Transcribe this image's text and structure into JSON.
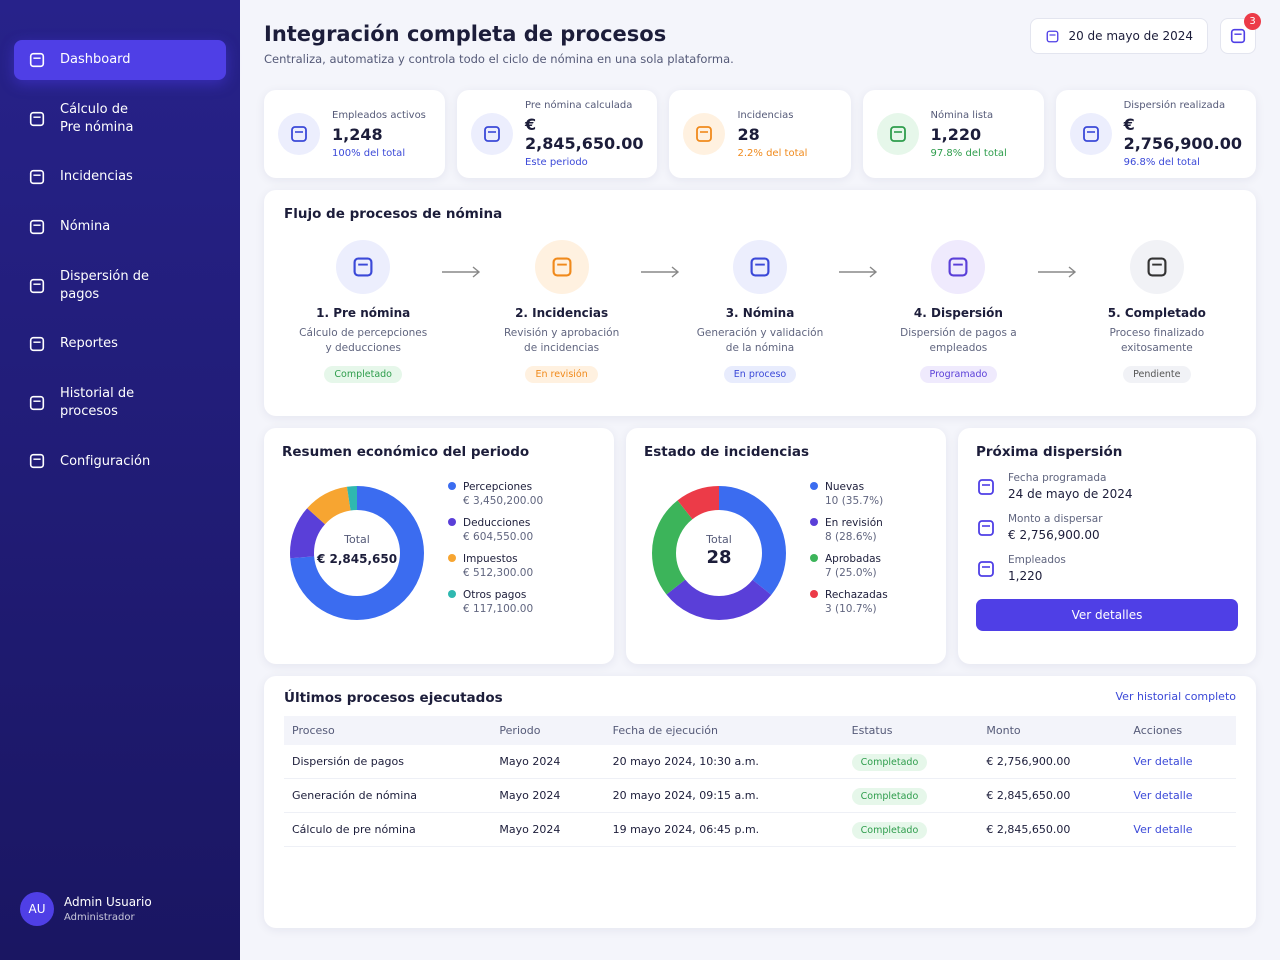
{
  "sidebar": {
    "nav": [
      "Dashboard",
      "Cálculo de Pre nómina",
      "Incidencias",
      "Nómina",
      "Dispersión de pagos",
      "Reportes",
      "Historial de procesos",
      "Configuración"
    ],
    "user": {
      "initials": "AU",
      "name": "Admin Usuario",
      "role": "Administrador"
    }
  },
  "header": {
    "title": "Integración completa de procesos",
    "subtitle": "Centraliza, automatiza y controla todo el ciclo de nómina en una sola plataforma.",
    "date": "20 de mayo de 2024",
    "notifications": 3
  },
  "kpis": [
    {
      "label": "Empleados activos",
      "value": "1,248",
      "note": "100% del total"
    },
    {
      "label": "Pre nómina calculada",
      "value": "€ 2,845,650.00",
      "note": "Este periodo"
    },
    {
      "label": "Incidencias",
      "value": "28",
      "note": "2.2% del total"
    },
    {
      "label": "Nómina lista",
      "value": "1,220",
      "note": "97.8% del total"
    },
    {
      "label": "Dispersión realizada",
      "value": "€ 2,756,900.00",
      "note": "96.8% del total"
    }
  ],
  "flow": {
    "title": "Flujo de procesos de nómina",
    "steps": [
      {
        "title": "1. Pre nómina",
        "desc": "Cálculo de percepciones y deducciones",
        "status": "Completado"
      },
      {
        "title": "2. Incidencias",
        "desc": "Revisión y aprobación de incidencias",
        "status": "En revisión"
      },
      {
        "title": "3. Nómina",
        "desc": "Generación y validación de la nómina",
        "status": "En proceso"
      },
      {
        "title": "4. Dispersión",
        "desc": "Dispersión de pagos a empleados",
        "status": "Programado"
      },
      {
        "title": "5. Completado",
        "desc": "Proceso finalizado exitosamente",
        "status": "Pendiente"
      }
    ]
  },
  "chart_data": [
    {
      "type": "pie",
      "donut": true,
      "title": "Resumen económico del periodo",
      "center_label": "Total",
      "center_value": "€ 2,845,650",
      "categories": [
        "Percepciones",
        "Deducciones",
        "Impuestos",
        "Otros pagos"
      ],
      "values": [
        3450200,
        604550,
        512300,
        117100
      ],
      "value_labels": [
        "€ 3,450,200.00",
        "€ 604,550.00",
        "€ 512,300.00",
        "€ 117,100.00"
      ],
      "colors": [
        "#3b6cf0",
        "#5a3fd8",
        "#f7a531",
        "#2fb8b0"
      ]
    },
    {
      "type": "pie",
      "donut": true,
      "title": "Estado de incidencias",
      "center_label": "Total",
      "center_value": 28,
      "categories": [
        "Nuevas",
        "En revisión",
        "Aprobadas",
        "Rechazadas"
      ],
      "values": [
        10,
        8,
        7,
        3
      ],
      "value_labels": [
        "10 (35.7%)",
        "8 (28.6%)",
        "7 (25.0%)",
        "3 (10.7%)"
      ],
      "colors": [
        "#3b6cf0",
        "#5a3fd8",
        "#3cb45a",
        "#ec3b48"
      ]
    }
  ],
  "next_dispersal": {
    "title": "Próxima dispersión",
    "items": [
      {
        "label": "Fecha programada",
        "value": "24 de mayo de 2024"
      },
      {
        "label": "Monto a dispersar",
        "value": "€ 2,756,900.00"
      },
      {
        "label": "Empleados",
        "value": "1,220"
      }
    ],
    "button": "Ver detalles"
  },
  "table": {
    "title": "Últimos procesos ejecutados",
    "link": "Ver historial completo",
    "headers": [
      "Proceso",
      "Periodo",
      "Fecha de ejecución",
      "Estatus",
      "Monto",
      "Acciones"
    ],
    "rows": [
      [
        "Dispersión de pagos",
        "Mayo 2024",
        "20 mayo 2024, 10:30 a.m.",
        "Completado",
        "€ 2,756,900.00",
        "Ver detalle"
      ],
      [
        "Generación de nómina",
        "Mayo 2024",
        "20 mayo 2024, 09:15 a.m.",
        "Completado",
        "€ 2,845,650.00",
        "Ver detalle"
      ],
      [
        "Cálculo de pre nómina",
        "Mayo 2024",
        "19 mayo 2024, 06:45 p.m.",
        "Completado",
        "€ 2,845,650.00",
        "Ver detalle"
      ]
    ]
  }
}
